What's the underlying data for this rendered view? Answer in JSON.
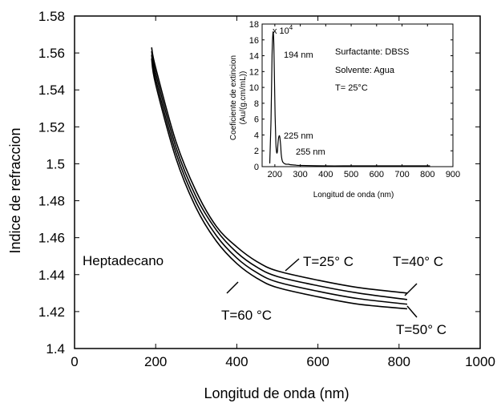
{
  "chart_data": [
    {
      "type": "line",
      "title": "",
      "xlabel": "Longitud de onda (nm)",
      "ylabel": "Indice de refraccion",
      "xlim": [
        0,
        1000
      ],
      "ylim": [
        1.4,
        1.58
      ],
      "xticks": [
        "0",
        "200",
        "400",
        "600",
        "800",
        "1000"
      ],
      "yticks": [
        "1.4",
        "1.42",
        "1.44",
        "1.46",
        "1.48",
        "1.5",
        "1.52",
        "1.54",
        "1.56",
        "1.58"
      ],
      "grid": false,
      "series": [
        {
          "name": "T=25° C",
          "x": [
            190,
            200,
            250,
            300,
            350,
            400,
            450,
            500,
            600,
            700,
            820
          ],
          "y": [
            1.563,
            1.552,
            1.512,
            1.485,
            1.466,
            1.455,
            1.447,
            1.442,
            1.437,
            1.433,
            1.43
          ]
        },
        {
          "name": "T=40° C",
          "x": [
            190,
            200,
            250,
            300,
            350,
            400,
            450,
            500,
            600,
            700,
            820
          ],
          "y": [
            1.561,
            1.549,
            1.509,
            1.482,
            1.464,
            1.452,
            1.444,
            1.439,
            1.434,
            1.43,
            1.4265
          ]
        },
        {
          "name": "T=50° C",
          "x": [
            190,
            200,
            250,
            300,
            350,
            400,
            450,
            500,
            600,
            700,
            820
          ],
          "y": [
            1.559,
            1.546,
            1.506,
            1.479,
            1.461,
            1.449,
            1.441,
            1.436,
            1.431,
            1.427,
            1.424
          ]
        },
        {
          "name": "T=60 °C",
          "x": [
            190,
            200,
            250,
            300,
            350,
            400,
            450,
            500,
            600,
            700,
            820
          ],
          "y": [
            1.557,
            1.543,
            1.503,
            1.476,
            1.458,
            1.446,
            1.438,
            1.433,
            1.428,
            1.424,
            1.4215
          ]
        }
      ],
      "annotations": {
        "compound": "Heptadecano",
        "t25": "T=25° C",
        "t40": "T=40° C",
        "t50": "T=50° C",
        "t60": "T=60 °C"
      }
    },
    {
      "type": "line",
      "title": "",
      "xlabel": "Longitud de onda (nm)",
      "ylabel": "Coeficiente de extincion (Au/(g.cm/mL))",
      "y_multiplier": "x 10^4",
      "xlim": [
        150,
        900
      ],
      "ylim": [
        0,
        18
      ],
      "xticks": [
        "200",
        "300",
        "400",
        "500",
        "600",
        "700",
        "800",
        "900"
      ],
      "yticks": [
        "0",
        "2",
        "4",
        "6",
        "8",
        "10",
        "12",
        "14",
        "16",
        "18"
      ],
      "series": [
        {
          "x": [
            180,
            185,
            189,
            192,
            194,
            196,
            198,
            201,
            204,
            207,
            210,
            212,
            214,
            216,
            218,
            220,
            223,
            225,
            228,
            231,
            235,
            240,
            245,
            250,
            255,
            260,
            280,
            300,
            400,
            500,
            600,
            700,
            810
          ],
          "y": [
            0.4,
            6.0,
            14.0,
            16.6,
            16.9,
            15.5,
            12.0,
            6.5,
            3.0,
            1.8,
            1.9,
            2.8,
            3.5,
            3.8,
            3.9,
            3.6,
            2.6,
            1.6,
            0.9,
            0.6,
            0.45,
            0.35,
            0.3,
            0.3,
            0.3,
            0.25,
            0.2,
            0.15,
            0.1,
            0.1,
            0.1,
            0.1,
            0.1
          ]
        }
      ],
      "peaks": [
        {
          "x": 194,
          "label": "194 nm"
        },
        {
          "x": 225,
          "label": "225 nm"
        },
        {
          "x": 255,
          "label": "255 nm"
        }
      ],
      "annotations": {
        "surfactant": "Surfactante: DBSS",
        "solvent": "Solvente: Agua",
        "temperature": "T= 25°C"
      }
    }
  ]
}
